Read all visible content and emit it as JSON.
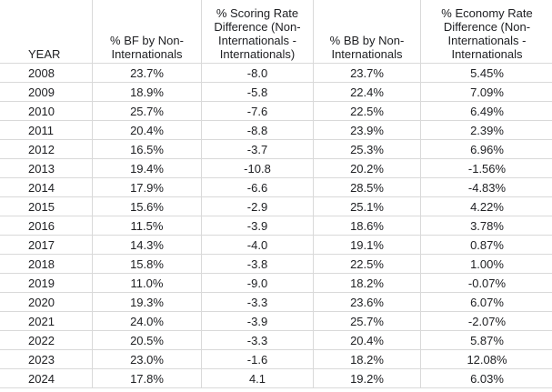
{
  "table": {
    "headers": [
      "YEAR",
      "% BF by Non-Internationals",
      "% Scoring Rate Difference (Non-Internationals - Internationals)",
      "% BB by Non-Internationals",
      "% Economy Rate Difference (Non-Internationals - Internationals"
    ],
    "rows": [
      [
        "2008",
        "23.7%",
        "-8.0",
        "23.7%",
        "5.45%"
      ],
      [
        "2009",
        "18.9%",
        "-5.8",
        "22.4%",
        "7.09%"
      ],
      [
        "2010",
        "25.7%",
        "-7.6",
        "22.5%",
        "6.49%"
      ],
      [
        "2011",
        "20.4%",
        "-8.8",
        "23.9%",
        "2.39%"
      ],
      [
        "2012",
        "16.5%",
        "-3.7",
        "25.3%",
        "6.96%"
      ],
      [
        "2013",
        "19.4%",
        "-10.8",
        "20.2%",
        "-1.56%"
      ],
      [
        "2014",
        "17.9%",
        "-6.6",
        "28.5%",
        "-4.83%"
      ],
      [
        "2015",
        "15.6%",
        "-2.9",
        "25.1%",
        "4.22%"
      ],
      [
        "2016",
        "11.5%",
        "-3.9",
        "18.6%",
        "3.78%"
      ],
      [
        "2017",
        "14.3%",
        "-4.0",
        "19.1%",
        "0.87%"
      ],
      [
        "2018",
        "15.8%",
        "-3.8",
        "22.5%",
        "1.00%"
      ],
      [
        "2019",
        "11.0%",
        "-9.0",
        "18.2%",
        "-0.07%"
      ],
      [
        "2020",
        "19.3%",
        "-3.3",
        "23.6%",
        "6.07%"
      ],
      [
        "2021",
        "24.0%",
        "-3.9",
        "25.7%",
        "-2.07%"
      ],
      [
        "2022",
        "20.5%",
        "-3.3",
        "20.4%",
        "5.87%"
      ],
      [
        "2023",
        "23.0%",
        "-1.6",
        "18.2%",
        "12.08%"
      ],
      [
        "2024",
        "17.8%",
        "4.1",
        "19.2%",
        "6.03%"
      ]
    ]
  }
}
